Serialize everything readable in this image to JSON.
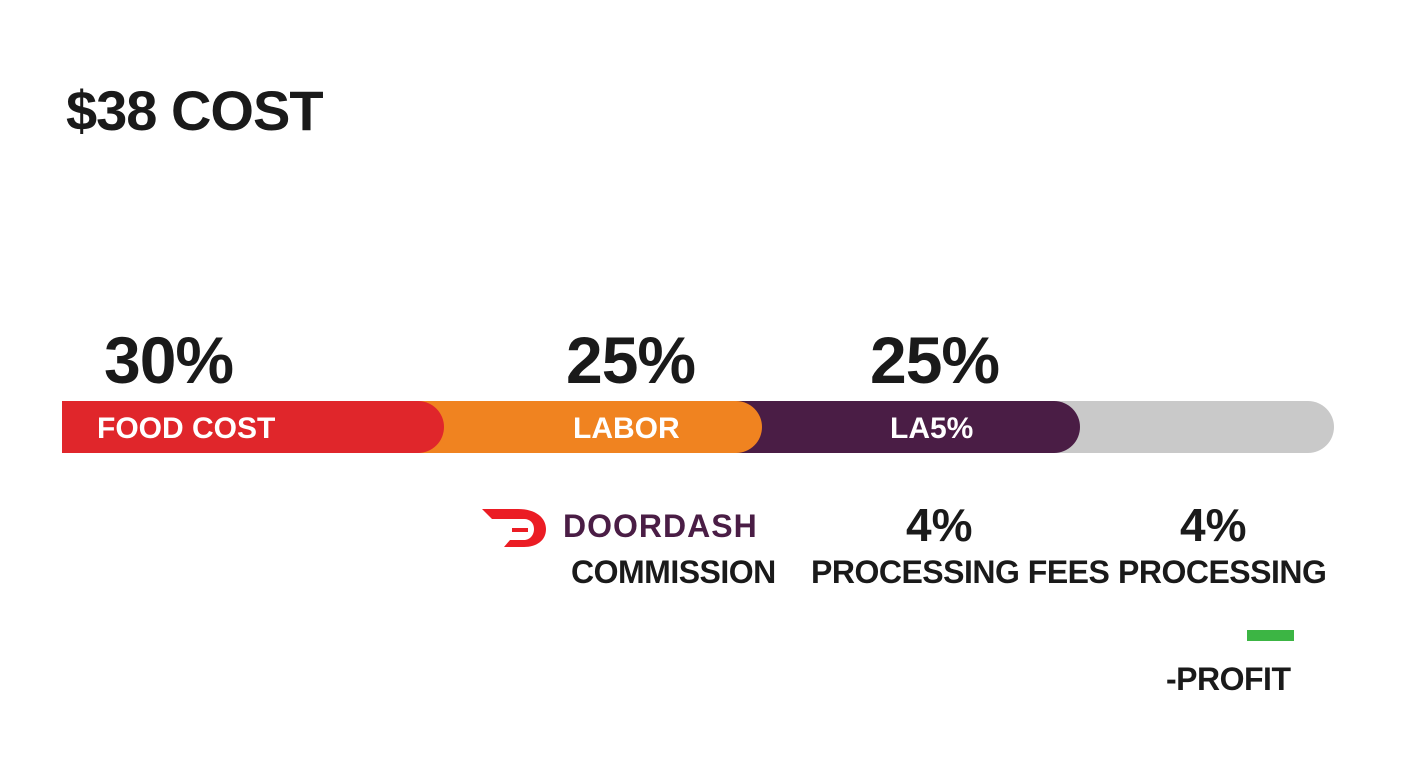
{
  "colors": {
    "food": "#e0262b",
    "labor": "#f08320",
    "la5": "#4a1d45",
    "rest": "#c9c9c9",
    "profit": "#3cb544",
    "brand_red": "#eb1c24",
    "brand_text": "#4a1d45",
    "text": "#1a1a1a"
  },
  "chart_data": {
    "type": "bar",
    "title": "$38 COST",
    "categories": [
      "FOOD COST",
      "LABOR",
      "LA5%",
      ""
    ],
    "values": [
      30,
      25,
      25,
      20
    ],
    "percent_labels": [
      "30%",
      "25%",
      "25%"
    ],
    "unit": "%",
    "annotations": {
      "brand": "DOORDASH",
      "commission": "COMMISSION",
      "processing_pct_1": "4%",
      "processing_1": "PROCESSING FEES",
      "processing_pct_2": "4%",
      "processing_2": "PROCESSING",
      "profit": "-PROFIT"
    }
  },
  "icons": {
    "brand_logo": "doordash-logo-icon"
  }
}
